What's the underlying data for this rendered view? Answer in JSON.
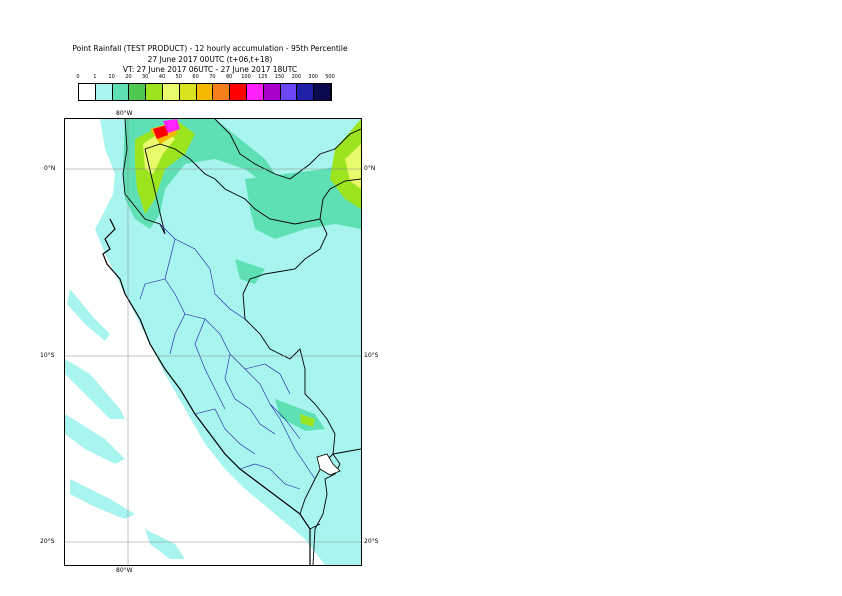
{
  "title": {
    "line1": "Point Rainfall (TEST PRODUCT) - 12 hourly accumulation - 95th Percentile",
    "line2": "27 June 2017 00UTC (t+06,t+18)",
    "line3": "VT: 27 June 2017 06UTC - 27 June 2017 18UTC"
  },
  "legend": {
    "ticks": [
      "0",
      "1",
      "10",
      "20",
      "30",
      "40",
      "50",
      "60",
      "70",
      "80",
      "100",
      "125",
      "150",
      "200",
      "300",
      "500"
    ],
    "colors": [
      "#ffffff",
      "#a8f5ef",
      "#5ee0b4",
      "#4ec84e",
      "#9be41e",
      "#e9fb6a",
      "#d9e21e",
      "#f5b800",
      "#f57f1a",
      "#ff0000",
      "#ff22ff",
      "#aa00cc",
      "#6e46f5",
      "#2020a8",
      "#0a0a50"
    ]
  },
  "axes": {
    "lon_label_top": "80°W",
    "lon_label_bottom": "80°W",
    "lat_labels_left": [
      "0°N",
      "10°S",
      "20°S"
    ],
    "lat_labels_right": [
      "0°N",
      "10°S",
      "20°S"
    ]
  },
  "map": {
    "ocean_color": "#ffffff",
    "light_rain_color": "#a8f5ef",
    "moderate_rain_color": "#5ee0b4"
  }
}
